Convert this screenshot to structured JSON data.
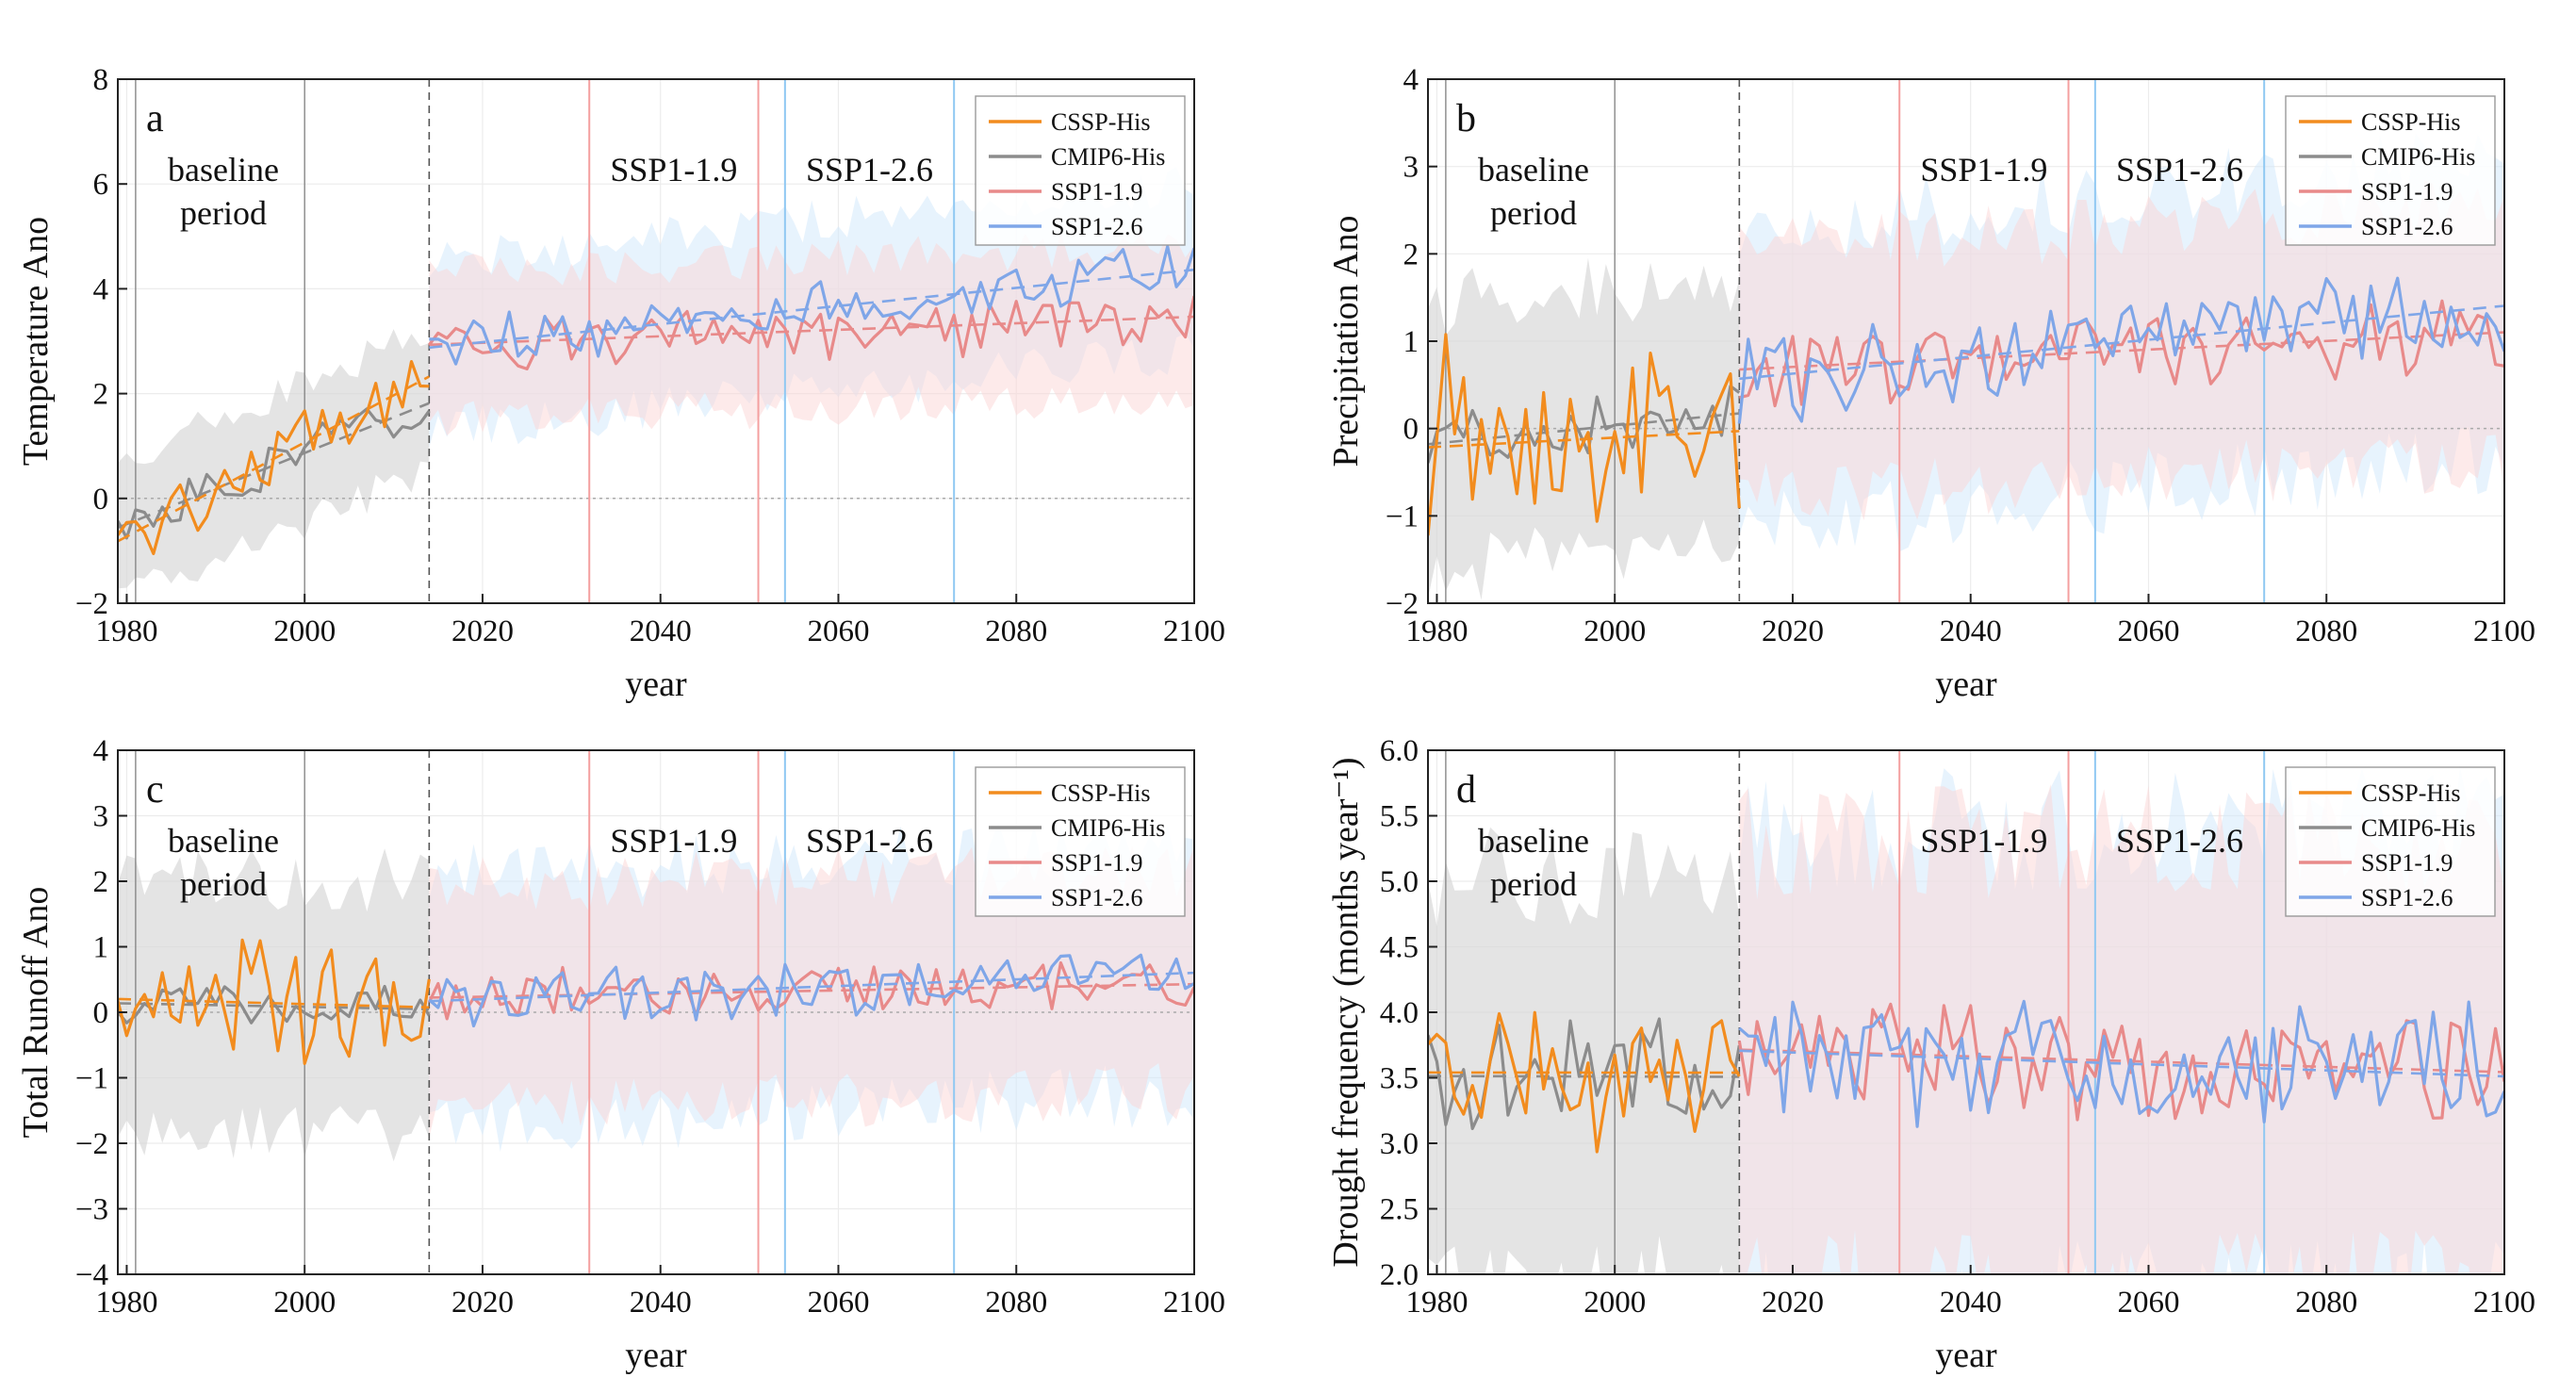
{
  "chart_data": [
    {
      "type": "line",
      "panel_label": "a",
      "title": "",
      "xlabel": "year",
      "ylabel": "Temperature Ano",
      "xlim": [
        1979,
        2100
      ],
      "ylim": [
        -2,
        8
      ],
      "xticks": [
        1980,
        2000,
        2020,
        2040,
        2060,
        2080,
        2100
      ],
      "yticks": [
        -2,
        0,
        2,
        4,
        6,
        8
      ],
      "baseline_label": [
        "baseline",
        "period"
      ],
      "scenario_labels": [
        "SSP1-1.9",
        "SSP1-2.6"
      ],
      "legend": [
        "CSSP-His",
        "CMIP6-His",
        "SSP1-1.9",
        "SSP1-2.6"
      ],
      "legend_position": "top-right",
      "historical_end": 2014,
      "baseline_lines": [
        1981,
        2000
      ],
      "crossing_lines": {
        "SSP1-1.9": [
          2032,
          2051
        ],
        "SSP1-2.6": [
          2054,
          2073
        ]
      },
      "series": [
        {
          "name": "CSSP-His",
          "trend": [
            -0.8,
            0.09
          ],
          "amp": 0.55,
          "x": [
            1979,
            2014
          ]
        },
        {
          "name": "CMIP6-His",
          "trend": [
            -0.6,
            0.07
          ],
          "amp": 0.4,
          "band": 1.4,
          "x": [
            1979,
            2014
          ]
        },
        {
          "name": "SSP1-1.9",
          "start": 2.9,
          "end": 3.4,
          "amp": 0.45,
          "band": 1.5,
          "x": [
            2014,
            2100
          ]
        },
        {
          "name": "SSP1-2.6",
          "start": 2.9,
          "end": 4.4,
          "amp": 0.45,
          "band": 1.7,
          "x": [
            2014,
            2100
          ]
        }
      ]
    },
    {
      "type": "line",
      "panel_label": "b",
      "title": "",
      "xlabel": "year",
      "ylabel": "Precipitation Ano",
      "xlim": [
        1979,
        2100
      ],
      "ylim": [
        -2,
        4
      ],
      "xticks": [
        1980,
        2000,
        2020,
        2040,
        2060,
        2080,
        2100
      ],
      "yticks": [
        -2,
        -1,
        0,
        1,
        2,
        3,
        4
      ],
      "baseline_label": [
        "baseline",
        "period"
      ],
      "scenario_labels": [
        "SSP1-1.9",
        "SSP1-2.6"
      ],
      "legend": [
        "CSSP-His",
        "CMIP6-His",
        "SSP1-1.9",
        "SSP1-2.6"
      ],
      "legend_position": "top-right",
      "historical_end": 2014,
      "baseline_lines": [
        1981,
        2000
      ],
      "crossing_lines": {
        "SSP1-1.9": [
          2032,
          2051
        ],
        "SSP1-2.6": [
          2054,
          2073
        ]
      },
      "series": [
        {
          "name": "CSSP-His",
          "trend": [
            0.0,
            0.0
          ],
          "amp": 1.0,
          "x": [
            1979,
            2014
          ]
        },
        {
          "name": "CMIP6-His",
          "trend": [
            -0.1,
            0.008
          ],
          "amp": 0.3,
          "band": 1.6,
          "x": [
            1979,
            2014
          ]
        },
        {
          "name": "SSP1-1.9",
          "start": 0.65,
          "end": 1.1,
          "amp": 0.4,
          "band": 1.5,
          "x": [
            2014,
            2100
          ]
        },
        {
          "name": "SSP1-2.6",
          "start": 0.55,
          "end": 1.4,
          "amp": 0.45,
          "band": 1.8,
          "x": [
            2014,
            2100
          ]
        }
      ]
    },
    {
      "type": "line",
      "panel_label": "c",
      "title": "",
      "xlabel": "year",
      "ylabel": "Total Runoff Ano",
      "xlim": [
        1979,
        2100
      ],
      "ylim": [
        -4,
        4
      ],
      "xticks": [
        1980,
        2000,
        2020,
        2040,
        2060,
        2080,
        2100
      ],
      "yticks": [
        -4,
        -3,
        -2,
        -1,
        0,
        1,
        2,
        3,
        4
      ],
      "baseline_label": [
        "baseline",
        "period"
      ],
      "scenario_labels": [
        "SSP1-1.9",
        "SSP1-2.6"
      ],
      "legend": [
        "CSSP-His",
        "CMIP6-His",
        "SSP1-1.9",
        "SSP1-2.6"
      ],
      "legend_position": "top-right",
      "historical_end": 2014,
      "baseline_lines": [
        1981,
        2000
      ],
      "crossing_lines": {
        "SSP1-1.9": [
          2032,
          2051
        ],
        "SSP1-2.6": [
          2054,
          2073
        ]
      },
      "series": [
        {
          "name": "CSSP-His",
          "trend": [
            0.2,
            -0.004
          ],
          "amp": 0.8,
          "x": [
            1979,
            2014
          ]
        },
        {
          "name": "CMIP6-His",
          "trend": [
            0.1,
            0.0
          ],
          "amp": 0.25,
          "band": 2.0,
          "x": [
            1979,
            2014
          ]
        },
        {
          "name": "SSP1-1.9",
          "start": 0.2,
          "end": 0.5,
          "amp": 0.35,
          "band": 1.8,
          "x": [
            2014,
            2100
          ]
        },
        {
          "name": "SSP1-2.6",
          "start": 0.15,
          "end": 0.65,
          "amp": 0.4,
          "band": 2.0,
          "x": [
            2014,
            2100
          ]
        }
      ]
    },
    {
      "type": "line",
      "panel_label": "d",
      "title": "",
      "xlabel": "year",
      "ylabel": "Drought frequency (months year⁻¹)",
      "xlim": [
        1979,
        2100
      ],
      "ylim": [
        2.0,
        6.0
      ],
      "xticks": [
        1980,
        2000,
        2020,
        2040,
        2060,
        2080,
        2100
      ],
      "yticks": [
        2.0,
        2.5,
        3.0,
        3.5,
        4.0,
        4.5,
        5.0,
        5.5,
        6.0
      ],
      "baseline_label": [
        "baseline",
        "period"
      ],
      "scenario_labels": [
        "SSP1-1.9",
        "SSP1-2.6"
      ],
      "legend": [
        "CSSP-His",
        "CMIP6-His",
        "SSP1-1.9",
        "SSP1-2.6"
      ],
      "legend_position": "top-right",
      "historical_end": 2014,
      "baseline_lines": [
        1981,
        2000
      ],
      "crossing_lines": {
        "SSP1-1.9": [
          2032,
          2051
        ],
        "SSP1-2.6": [
          2054,
          2073
        ]
      },
      "series": [
        {
          "name": "CSSP-His",
          "trend": [
            3.5,
            0.0
          ],
          "amp": 0.45,
          "x": [
            1979,
            2014
          ]
        },
        {
          "name": "CMIP6-His",
          "trend": [
            3.5,
            0.0
          ],
          "amp": 0.4,
          "band": 1.6,
          "x": [
            1979,
            2014
          ]
        },
        {
          "name": "SSP1-1.9",
          "start": 3.6,
          "end": 3.6,
          "amp": 0.4,
          "band": 1.8,
          "x": [
            2014,
            2100
          ]
        },
        {
          "name": "SSP1-2.6",
          "start": 3.6,
          "end": 3.6,
          "amp": 0.4,
          "band": 1.9,
          "x": [
            2014,
            2100
          ]
        }
      ]
    }
  ],
  "colors": {
    "CSSP-His": "#f28c1e",
    "CMIP6-His": "#8c8c8c",
    "SSP1-1.9": "#e88a8a",
    "SSP1-2.6": "#7fa6e8",
    "band_his": "#d9d9d9",
    "band_ssp119": "#fbd5d5",
    "band_ssp126": "#cfe8fb",
    "crossing_ssp119": "#f4a0a0",
    "crossing_ssp126": "#90c8f2"
  }
}
